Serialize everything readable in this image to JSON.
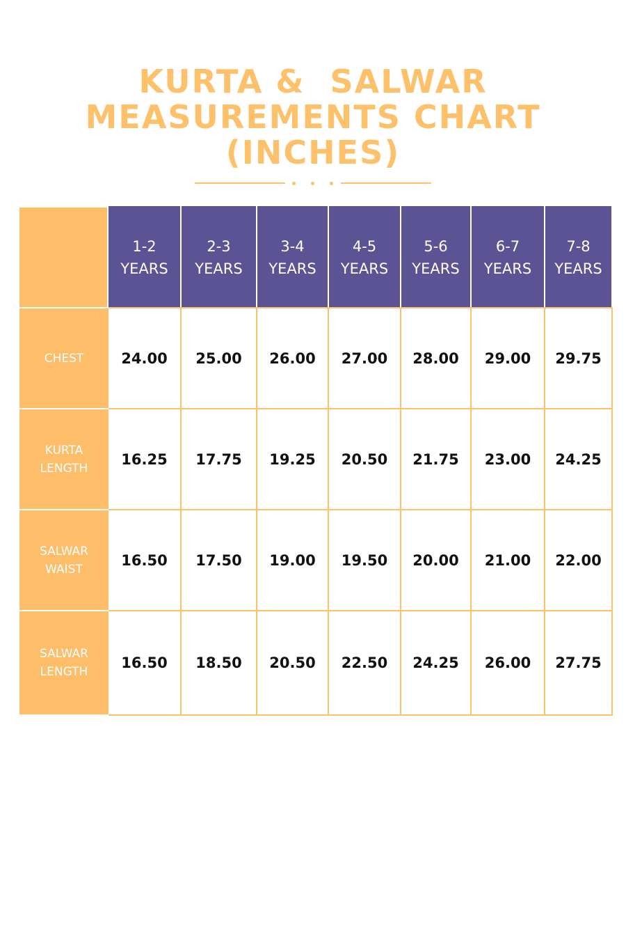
{
  "title": {
    "line1": "KURTA &  SALWAR",
    "line2": "MEASUREMENTS CHART",
    "line3": "(INCHES)"
  },
  "colors": {
    "accent_orange": "#fdbd69",
    "header_purple": "#5b5394",
    "text_dark": "#111111"
  },
  "table": {
    "columns": [
      {
        "line1": "1-2",
        "line2": "YEARS"
      },
      {
        "line1": "2-3",
        "line2": "YEARS"
      },
      {
        "line1": "3-4",
        "line2": "YEARS"
      },
      {
        "line1": "4-5",
        "line2": "YEARS"
      },
      {
        "line1": "5-6",
        "line2": "YEARS"
      },
      {
        "line1": "6-7",
        "line2": "YEARS"
      },
      {
        "line1": "7-8",
        "line2": "YEARS"
      }
    ],
    "rows": [
      {
        "line1": "CHEST",
        "line2": "",
        "values": [
          "24.00",
          "25.00",
          "26.00",
          "27.00",
          "28.00",
          "29.00",
          "29.75"
        ]
      },
      {
        "line1": "KURTA",
        "line2": "LENGTH",
        "values": [
          "16.25",
          "17.75",
          "19.25",
          "20.50",
          "21.75",
          "23.00",
          "24.25"
        ]
      },
      {
        "line1": "SALWAR",
        "line2": "WAIST",
        "values": [
          "16.50",
          "17.50",
          "19.00",
          "19.50",
          "20.00",
          "21.00",
          "22.00"
        ]
      },
      {
        "line1": "SALWAR",
        "line2": "LENGTH",
        "values": [
          "16.50",
          "18.50",
          "20.50",
          "22.50",
          "24.25",
          "26.00",
          "27.75"
        ]
      }
    ]
  }
}
